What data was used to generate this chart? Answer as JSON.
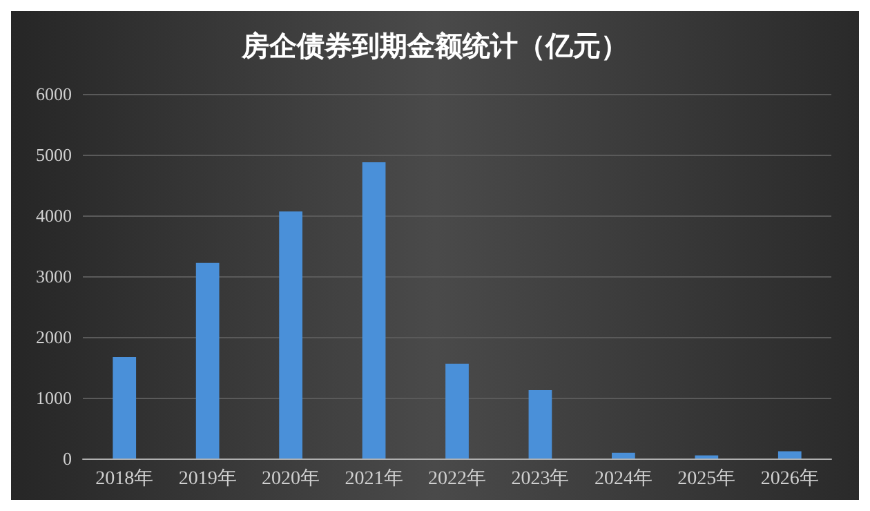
{
  "chart_data": {
    "type": "bar",
    "title": "房企债券到期金额统计（亿元）",
    "categories": [
      "2018年",
      "2019年",
      "2020年",
      "2021年",
      "2022年",
      "2023年",
      "2024年",
      "2025年",
      "2026年"
    ],
    "values": [
      1670,
      3220,
      4065,
      4875,
      1560,
      1125,
      95,
      50,
      120
    ],
    "color": "#4a90d9",
    "ylim": [
      0,
      6000
    ],
    "yticks": [
      0,
      1000,
      2000,
      3000,
      4000,
      5000,
      6000
    ],
    "grid": "y"
  }
}
